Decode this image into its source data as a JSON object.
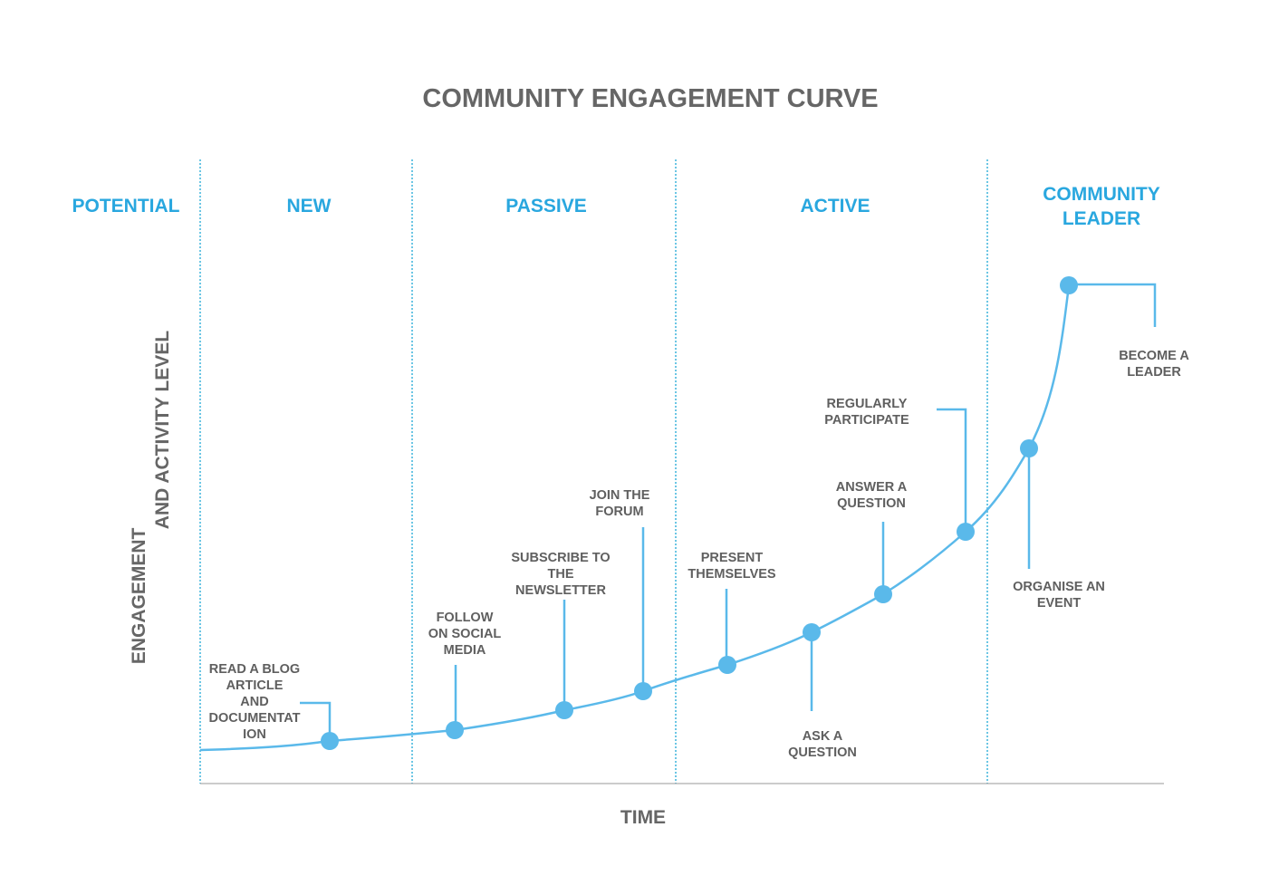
{
  "title": "COMMUNITY ENGAGEMENT CURVE",
  "y_axis": [
    "ENGAGEMENT",
    "AND ACTIVITY LEVEL"
  ],
  "x_axis": "TIME",
  "stages": [
    {
      "id": "potential",
      "lines": [
        "POTENTIAL"
      ]
    },
    {
      "id": "new",
      "lines": [
        "NEW"
      ]
    },
    {
      "id": "passive",
      "lines": [
        "PASSIVE"
      ]
    },
    {
      "id": "active",
      "lines": [
        "ACTIVE"
      ]
    },
    {
      "id": "community-leader",
      "lines": [
        "COMMUNITY",
        "LEADER"
      ]
    }
  ],
  "milestones": [
    {
      "id": "read-blog",
      "lines": [
        "READ A BLOG",
        "ARTICLE",
        "AND",
        "DOCUMENTAT",
        "ION"
      ]
    },
    {
      "id": "follow-social",
      "lines": [
        "FOLLOW",
        "ON SOCIAL",
        "MEDIA"
      ]
    },
    {
      "id": "subscribe-newsletter",
      "lines": [
        "SUBSCRIBE TO",
        "THE",
        "NEWSLETTER"
      ]
    },
    {
      "id": "join-forum",
      "lines": [
        "JOIN THE",
        "FORUM"
      ]
    },
    {
      "id": "present-themselves",
      "lines": [
        "PRESENT",
        "THEMSELVES"
      ]
    },
    {
      "id": "ask-question",
      "lines": [
        "ASK A",
        "QUESTION"
      ]
    },
    {
      "id": "answer-question",
      "lines": [
        "ANSWER A",
        "QUESTION"
      ]
    },
    {
      "id": "regularly-participate",
      "lines": [
        "REGULARLY",
        "PARTICIPATE"
      ]
    },
    {
      "id": "organise-event",
      "lines": [
        "ORGANISE AN",
        "EVENT"
      ]
    },
    {
      "id": "become-leader",
      "lines": [
        "BECOME A",
        "LEADER"
      ]
    }
  ],
  "colors": {
    "accent": "#29a7df",
    "curve": "#5ab9ea",
    "text": "#666666"
  }
}
